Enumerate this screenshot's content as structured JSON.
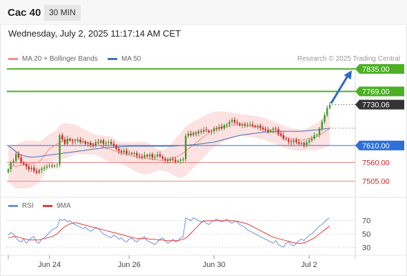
{
  "header": {
    "symbol": "Cac 40",
    "timeframe": "30 MIN"
  },
  "datetime": "Wednesday, July 2, 2025 11:17:14 AM CET",
  "legend": {
    "ma20_label": "MA 20 + Bollinger Bands",
    "ma50_label": "MA 50",
    "credit": "Research © 2025 Trading Central"
  },
  "osc_legend": {
    "rsi_label": "RSI",
    "ma9_label": "9MA"
  },
  "colors": {
    "bullish": "#3c9a2c",
    "bearish": "#c62828",
    "resistance": "#4caf24",
    "support_red": "#f08080",
    "pivot_blue": "#2f6fd8",
    "ma20": "#f28b82",
    "ma50": "#3f6fb5",
    "bands": "#fde2e2",
    "rsi": "#6f8fe0",
    "rsi_ma": "#e53935",
    "arrow": "#2a6bc8"
  },
  "chart_data": [
    {
      "type": "candlestick",
      "title": "",
      "x_ticks": [
        "Jun 24",
        "Jun 26",
        "Jun 30",
        "Jul 2"
      ],
      "ylim": [
        7480,
        7845
      ],
      "levels": [
        {
          "value": 7835.0,
          "label": "7835.00",
          "kind": "resistance"
        },
        {
          "value": 7769.0,
          "label": "7769.00",
          "kind": "resistance"
        },
        {
          "value": 7730.06,
          "label": "7730.06",
          "kind": "last"
        },
        {
          "value": 7610.0,
          "label": "7610.00",
          "kind": "pivot"
        },
        {
          "value": 7560.0,
          "label": "7560.00",
          "kind": "support"
        },
        {
          "value": 7505.0,
          "label": "7505.00",
          "kind": "support"
        }
      ],
      "close": [
        7540,
        7560,
        7565,
        7585,
        7575,
        7560,
        7555,
        7548,
        7540,
        7545,
        7535,
        7530,
        7538,
        7542,
        7545,
        7548,
        7551,
        7548,
        7552,
        7554,
        7640,
        7628,
        7615,
        7630,
        7625,
        7622,
        7624,
        7627,
        7620,
        7622,
        7615,
        7618,
        7612,
        7610,
        7620,
        7618,
        7625,
        7615,
        7618,
        7620,
        7615,
        7610,
        7600,
        7594,
        7590,
        7595,
        7586,
        7588,
        7585,
        7588,
        7580,
        7578,
        7575,
        7582,
        7578,
        7584,
        7575,
        7578,
        7584,
        7578,
        7572,
        7568,
        7565,
        7570,
        7568,
        7562,
        7565,
        7568,
        7570,
        7638,
        7645,
        7640,
        7648,
        7645,
        7652,
        7650,
        7656,
        7654,
        7650,
        7652,
        7660,
        7658,
        7665,
        7660,
        7670,
        7672,
        7680,
        7685,
        7678,
        7675,
        7670,
        7673,
        7670,
        7672,
        7672,
        7668,
        7665,
        7668,
        7662,
        7658,
        7655,
        7650,
        7655,
        7660,
        7658,
        7645,
        7640,
        7630,
        7628,
        7622,
        7620,
        7625,
        7620,
        7615,
        7618,
        7612,
        7620,
        7625,
        7630,
        7640,
        7642,
        7660,
        7680,
        7700,
        7720,
        7730
      ],
      "ma20": [
        7555,
        7552,
        7550,
        7548,
        7550,
        7552,
        7553,
        7554,
        7555,
        7556,
        7558,
        7560,
        7562,
        7570,
        7580,
        7590,
        7600,
        7605,
        7610,
        7615,
        7620,
        7622,
        7624,
        7625,
        7626,
        7627,
        7628,
        7626,
        7624,
        7622,
        7620,
        7618,
        7616,
        7614,
        7612,
        7610,
        7608,
        7605,
        7602,
        7600,
        7598,
        7595,
        7593,
        7590,
        7588,
        7586,
        7584,
        7582,
        7580,
        7578,
        7576,
        7575,
        7574,
        7573,
        7572,
        7571,
        7570,
        7569,
        7568,
        7567,
        7566,
        7567,
        7568,
        7570,
        7572,
        7575,
        7578,
        7582,
        7588,
        7594,
        7600,
        7606,
        7612,
        7618,
        7624,
        7630,
        7636,
        7642,
        7648,
        7653,
        7657,
        7660,
        7662,
        7664,
        7666,
        7667,
        7668,
        7669,
        7670,
        7670,
        7670,
        7670,
        7669,
        7668,
        7667,
        7666,
        7665,
        7664,
        7662,
        7660,
        7658,
        7655,
        7652,
        7649,
        7646,
        7643,
        7640,
        7637,
        7634,
        7632,
        7630,
        7628,
        7627,
        7626,
        7626,
        7627,
        7628,
        7630,
        7632,
        7634,
        7636,
        7640,
        7645,
        7650,
        7655,
        7660
      ],
      "ma50": [
        7608,
        7604,
        7598,
        7592,
        7586,
        7582,
        7580,
        7578,
        7577,
        7576,
        7576,
        7577,
        7578,
        7579,
        7580,
        7581,
        7582,
        7583,
        7584,
        7585,
        7586,
        7587,
        7588,
        7589,
        7590,
        7591,
        7592,
        7593,
        7594,
        7595,
        7596,
        7597,
        7598,
        7599,
        7600,
        7601,
        7602,
        7603,
        7603,
        7604,
        7604,
        7605,
        7605,
        7606,
        7606,
        7607,
        7607,
        7608,
        7608,
        7608,
        7608,
        7608,
        7608,
        7608,
        7608,
        7608,
        7608,
        7608,
        7608,
        7608,
        7608,
        7608,
        7608,
        7608,
        7608,
        7609,
        7609,
        7610,
        7610,
        7611,
        7611,
        7612,
        7612,
        7613,
        7614,
        7615,
        7616,
        7617,
        7618,
        7619,
        7620,
        7622,
        7624,
        7626,
        7628,
        7630,
        7632,
        7634,
        7636,
        7638,
        7640,
        7641,
        7642,
        7643,
        7644,
        7645,
        7646,
        7647,
        7648,
        7649,
        7650,
        7650,
        7651,
        7651,
        7652,
        7652,
        7652,
        7652,
        7652,
        7652,
        7652,
        7652,
        7652,
        7652,
        7652,
        7653,
        7653,
        7654,
        7655,
        7656,
        7656,
        7657,
        7658,
        7659,
        7660,
        7661
      ],
      "band_width": [
        52,
        56,
        60,
        64,
        66,
        68,
        70,
        70,
        70,
        68,
        66,
        64,
        60,
        56,
        52,
        48,
        44,
        42,
        42,
        44,
        50,
        52,
        52,
        50,
        48,
        46,
        44,
        42,
        40,
        38,
        36,
        34,
        32,
        30,
        30,
        30,
        32,
        34,
        36,
        38,
        38,
        36,
        34,
        32,
        32,
        34,
        36,
        38,
        40,
        42,
        44,
        46,
        48,
        48,
        46,
        44,
        40,
        36,
        32,
        30,
        30,
        32,
        36,
        42,
        48,
        56,
        62,
        66,
        70,
        72,
        72,
        70,
        68,
        66,
        64,
        62,
        60,
        58,
        56,
        54,
        52,
        50,
        48,
        46,
        44,
        42,
        40,
        38,
        36,
        34,
        32,
        32,
        32,
        32,
        32,
        32,
        32,
        32,
        32,
        32,
        32,
        32,
        32,
        32,
        32,
        32,
        32,
        32,
        32,
        32,
        32,
        32,
        32,
        32,
        32,
        32,
        32,
        34,
        36,
        38,
        40,
        42,
        44,
        46,
        48,
        50
      ],
      "projection": {
        "from": 7730.06,
        "to": 7835.0
      }
    },
    {
      "type": "line",
      "title": "",
      "ylim": [
        20,
        80
      ],
      "y_ticks": [
        70,
        50,
        30
      ],
      "series": [
        {
          "name": "RSI",
          "values": [
            48,
            52,
            50,
            44,
            40,
            38,
            42,
            36,
            40,
            44,
            46,
            38,
            36,
            42,
            44,
            48,
            52,
            56,
            58,
            60,
            72,
            70,
            72,
            68,
            70,
            66,
            64,
            62,
            60,
            58,
            60,
            56,
            54,
            56,
            60,
            58,
            54,
            50,
            48,
            46,
            44,
            48,
            46,
            42,
            44,
            40,
            38,
            42,
            44,
            40,
            38,
            42,
            44,
            46,
            40,
            38,
            36,
            34,
            38,
            42,
            44,
            40,
            36,
            38,
            42,
            38,
            40,
            44,
            46,
            74,
            72,
            70,
            74,
            72,
            70,
            68,
            70,
            66,
            64,
            68,
            70,
            72,
            70,
            68,
            70,
            72,
            68,
            66,
            70,
            68,
            64,
            62,
            60,
            56,
            54,
            52,
            50,
            48,
            46,
            44,
            42,
            40,
            38,
            36,
            40,
            34,
            32,
            30,
            36,
            38,
            34,
            32,
            36,
            40,
            42,
            40,
            44,
            48,
            50,
            54,
            58,
            62,
            64,
            68,
            72,
            74
          ]
        },
        {
          "name": "9MA",
          "values": [
            44,
            45,
            46,
            46,
            45,
            44,
            43,
            42,
            41,
            41,
            41,
            41,
            41,
            42,
            43,
            44,
            45,
            46,
            48,
            50,
            54,
            58,
            61,
            63,
            65,
            66,
            67,
            66,
            65,
            64,
            63,
            62,
            61,
            60,
            59,
            58,
            57,
            56,
            55,
            54,
            53,
            52,
            51,
            50,
            49,
            48,
            47,
            46,
            45,
            44,
            43,
            43,
            43,
            43,
            43,
            42,
            42,
            42,
            41,
            41,
            41,
            40,
            40,
            40,
            40,
            40,
            40,
            41,
            42,
            44,
            47,
            51,
            55,
            59,
            63,
            67,
            69,
            70,
            70,
            70,
            70,
            70,
            70,
            70,
            70,
            70,
            70,
            70,
            69,
            69,
            68,
            67,
            66,
            65,
            63,
            61,
            59,
            57,
            55,
            53,
            51,
            49,
            47,
            45,
            44,
            43,
            42,
            41,
            40,
            39,
            38,
            37,
            36,
            36,
            36,
            37,
            38,
            40,
            42,
            44,
            47,
            50,
            53,
            56,
            59,
            62
          ]
        }
      ]
    }
  ]
}
